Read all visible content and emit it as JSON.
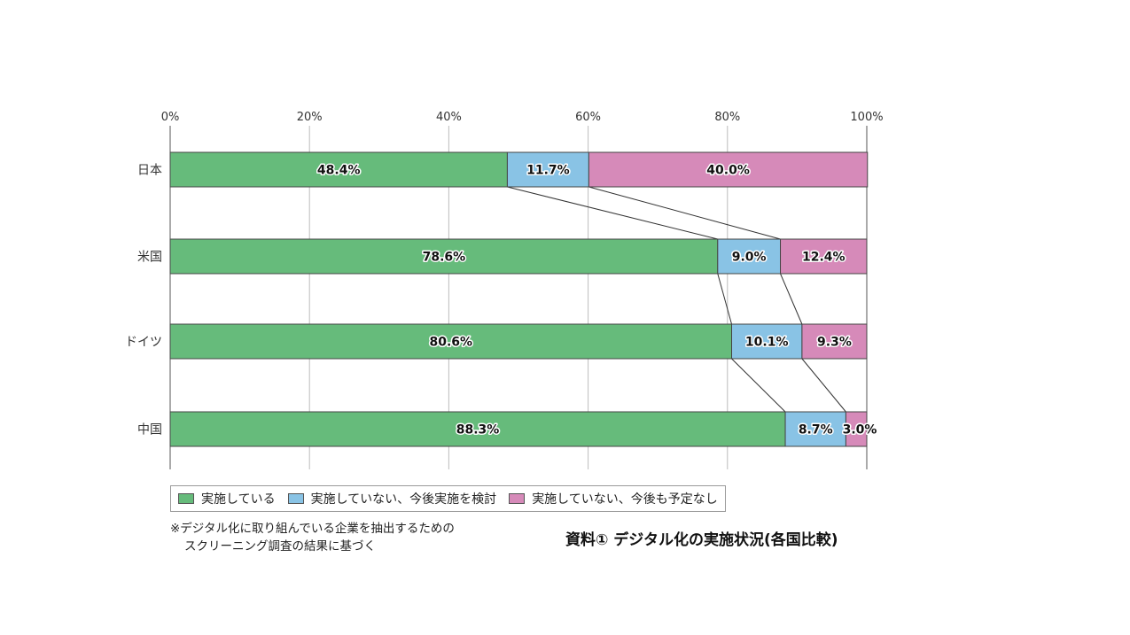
{
  "chart_data": {
    "type": "bar",
    "orientation": "horizontal",
    "stacked": true,
    "percent": true,
    "categories": [
      "日本",
      "米国",
      "ドイツ",
      "中国"
    ],
    "series": [
      {
        "name": "実施している",
        "color": "#66bb7b",
        "values": [
          48.4,
          78.6,
          80.6,
          88.3
        ],
        "labels": [
          "48.4%",
          "78.6%",
          "80.6%",
          "88.3%"
        ]
      },
      {
        "name": "実施していない、今後実施を検討",
        "color": "#89c3e5",
        "values": [
          11.7,
          9.0,
          10.1,
          8.7
        ],
        "labels": [
          "11.7%",
          "9.0%",
          "10.1%",
          "8.7%"
        ]
      },
      {
        "name": "実施していない、今後も予定なし",
        "color": "#d68ab9",
        "values": [
          40.0,
          12.4,
          9.3,
          3.0
        ],
        "labels": [
          "40.0%",
          "12.4%",
          "9.3%",
          "3.0%"
        ]
      }
    ],
    "xlim": [
      0,
      100
    ],
    "xticks": [
      "0%",
      "20%",
      "40%",
      "60%",
      "80%",
      "100%"
    ],
    "grid": true,
    "series_lines": true,
    "legend_position": "bottom"
  },
  "note": {
    "line1": "※デジタル化に取り組んでいる企業を抽出するための",
    "line2": "スクリーニング調査の結果に基づく"
  },
  "caption": "資料① デジタル化の実施状況(各国比較)"
}
